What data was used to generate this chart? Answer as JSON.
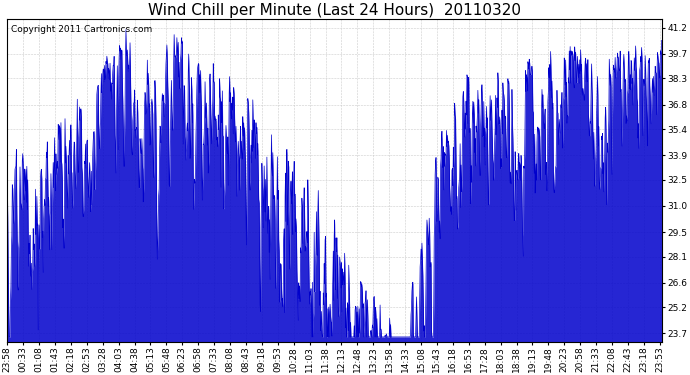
{
  "title": "Wind Chill per Minute (Last 24 Hours)  20110320",
  "copyright": "Copyright 2011 Cartronics.com",
  "line_color": "#0000cc",
  "bg_color": "#ffffff",
  "plot_bg_color": "#ffffff",
  "grid_color": "#cccccc",
  "yticks": [
    23.7,
    25.2,
    26.6,
    28.1,
    29.5,
    31.0,
    32.5,
    33.9,
    35.4,
    36.8,
    38.3,
    39.7,
    41.2
  ],
  "ymin": 23.2,
  "ymax": 41.7,
  "title_fontsize": 11,
  "tick_fontsize": 6.5,
  "copyright_fontsize": 6.5,
  "figwidth": 6.9,
  "figheight": 3.75,
  "dpi": 100
}
